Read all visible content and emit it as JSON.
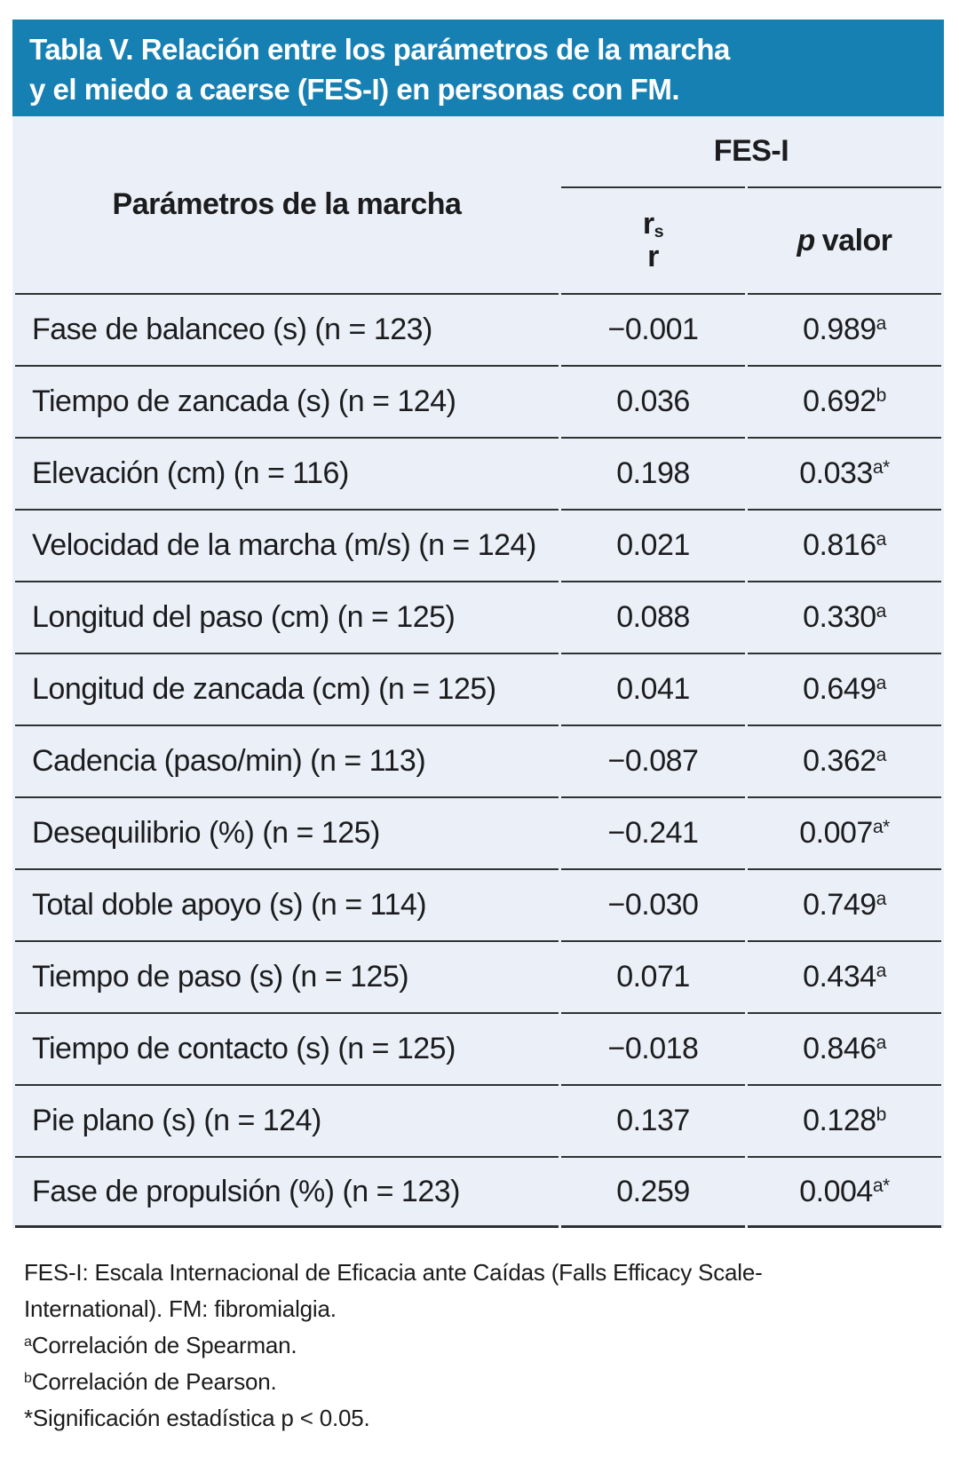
{
  "colors": {
    "banner_bg": "#1780B2",
    "banner_text": "#FFFFFF",
    "table_bg": "#EBF0F8",
    "rule": "#2E3135",
    "text": "#1C1C1E"
  },
  "title": {
    "line1": "Tabla V. Relación entre los parámetros de la marcha",
    "line2": "y el miedo a caerse (FES-I) en personas con FM."
  },
  "table": {
    "col1_header": "Parámetros de la marcha",
    "group_header": "FES-I",
    "sub_headers": {
      "r1_main": "r",
      "r1_sub": "s",
      "r2": "r",
      "p_italic": "p",
      "p_rest": "valor"
    },
    "rows": [
      {
        "param": "Fase de balanceo (s) (n = 123)",
        "r": "−0.001",
        "p": "0.989",
        "p_sup": "a"
      },
      {
        "param": "Tiempo de zancada (s) (n = 124)",
        "r": "0.036",
        "p": "0.692",
        "p_sup": "b"
      },
      {
        "param": "Elevación (cm) (n = 116)",
        "r": "0.198",
        "p": "0.033",
        "p_sup": "a*"
      },
      {
        "param": "Velocidad de la marcha (m/s) (n = 124)",
        "r": "0.021",
        "p": "0.816",
        "p_sup": "a"
      },
      {
        "param": "Longitud del paso (cm) (n = 125)",
        "r": "0.088",
        "p": "0.330",
        "p_sup": "a"
      },
      {
        "param": "Longitud de zancada (cm) (n = 125)",
        "r": "0.041",
        "p": "0.649",
        "p_sup": "a"
      },
      {
        "param": "Cadencia (paso/min) (n = 113)",
        "r": "−0.087",
        "p": "0.362",
        "p_sup": "a"
      },
      {
        "param": "Desequilibrio (%) (n = 125)",
        "r": "−0.241",
        "p": "0.007",
        "p_sup": "a*"
      },
      {
        "param": "Total doble apoyo (s) (n = 114)",
        "r": "−0.030",
        "p": "0.749",
        "p_sup": "a"
      },
      {
        "param": "Tiempo de paso (s) (n = 125)",
        "r": "0.071",
        "p": "0.434",
        "p_sup": "a"
      },
      {
        "param": "Tiempo de contacto (s) (n = 125)",
        "r": "−0.018",
        "p": "0.846",
        "p_sup": "a"
      },
      {
        "param": "Pie plano (s) (n = 124)",
        "r": "0.137",
        "p": "0.128",
        "p_sup": "b"
      },
      {
        "param": "Fase de propulsión (%) (n = 123)",
        "r": "0.259",
        "p": "0.004",
        "p_sup": "a*"
      }
    ]
  },
  "footnotes": {
    "abbrev_line1": "FES-I: Escala Internacional de Eficacia ante Caídas (Falls Efficacy Scale-",
    "abbrev_line2": "International). FM: fibromialgia.",
    "a_sup": "a",
    "a_text": "Correlación de Spearman.",
    "b_sup": "b",
    "b_text": "Correlación de Pearson.",
    "sig_text": "*Significación estadística p < 0.05."
  }
}
